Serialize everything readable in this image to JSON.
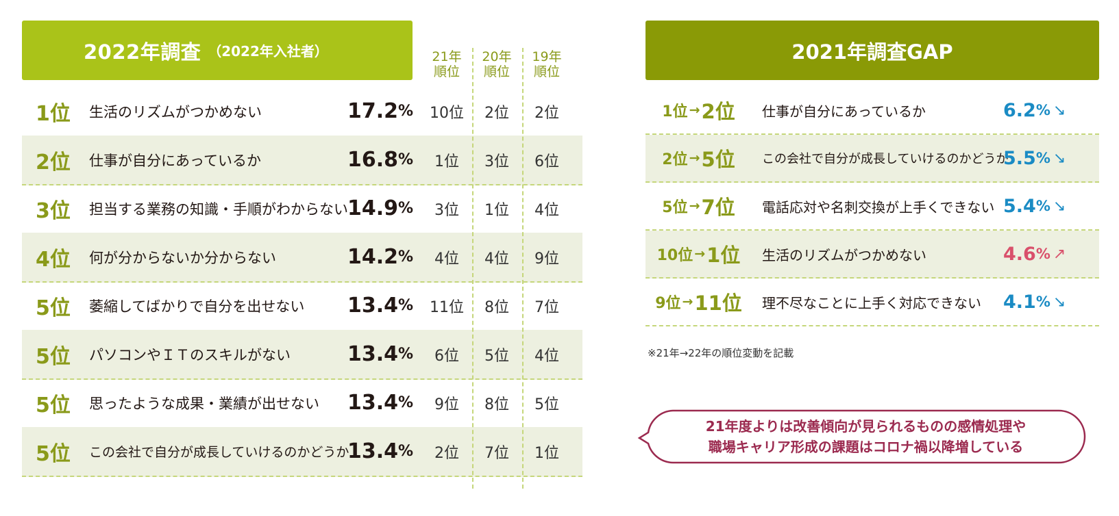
{
  "survey_2022": {
    "title": "2022年調査",
    "subtitle": "（2022年入社者）",
    "column_headers": [
      {
        "line1": "21年",
        "line2": "順位"
      },
      {
        "line1": "20年",
        "line2": "順位"
      },
      {
        "line1": "19年",
        "line2": "順位"
      }
    ],
    "rows": [
      {
        "rank": "1位",
        "text": "生活のリズムがつかめない",
        "pct": "17.2",
        "unit": "%",
        "y21": "10位",
        "y20": "2位",
        "y19": "2位"
      },
      {
        "rank": "2位",
        "text": "仕事が自分にあっているか",
        "pct": "16.8",
        "unit": "%",
        "y21": "1位",
        "y20": "3位",
        "y19": "6位"
      },
      {
        "rank": "3位",
        "text": "担当する業務の知識・手順がわからない",
        "pct": "14.9",
        "unit": "%",
        "y21": "3位",
        "y20": "1位",
        "y19": "4位"
      },
      {
        "rank": "4位",
        "text": "何が分からないか分からない",
        "pct": "14.2",
        "unit": "%",
        "y21": "4位",
        "y20": "4位",
        "y19": "9位"
      },
      {
        "rank": "5位",
        "text": "萎縮してばかりで自分を出せない",
        "pct": "13.4",
        "unit": "%",
        "y21": "11位",
        "y20": "8位",
        "y19": "7位"
      },
      {
        "rank": "5位",
        "text": "パソコンやＩＴのスキルがない",
        "pct": "13.4",
        "unit": "%",
        "y21": "6位",
        "y20": "5位",
        "y19": "4位"
      },
      {
        "rank": "5位",
        "text": "思ったような成果・業績が出せない",
        "pct": "13.4",
        "unit": "%",
        "y21": "9位",
        "y20": "8位",
        "y19": "5位"
      },
      {
        "rank": "5位",
        "text": "この会社で自分が成長していけるのかどうか",
        "pct": "13.4",
        "unit": "%",
        "y21": "2位",
        "y20": "7位",
        "y19": "1位"
      }
    ]
  },
  "gap_2021": {
    "title": "2021年調査GAP",
    "arrow": "→",
    "rows": [
      {
        "from": "1位",
        "to": "2位",
        "text": "仕事が自分にあっているか",
        "pct": "6.2",
        "unit": "%",
        "trend": "↘",
        "trend_color": "#1a8bc4"
      },
      {
        "from": "2位",
        "to": "5位",
        "text": "この会社で自分が成長していけるのかどうか",
        "pct": "5.5",
        "unit": "%",
        "trend": "↘",
        "trend_color": "#1a8bc4"
      },
      {
        "from": "5位",
        "to": "7位",
        "text": "電話応対や名刺交換が上手くできない",
        "pct": "5.4",
        "unit": "%",
        "trend": "↘",
        "trend_color": "#1a8bc4"
      },
      {
        "from": "10位",
        "to": "1位",
        "text": "生活のリズムがつかめない",
        "pct": "4.6",
        "unit": "%",
        "trend": "↗",
        "trend_color": "#d9506b"
      },
      {
        "from": "9位",
        "to": "11位",
        "text": "理不尽なことに上手く対応できない",
        "pct": "4.1",
        "unit": "%",
        "trend": "↘",
        "trend_color": "#1a8bc4"
      }
    ],
    "note": "※21年→22年の順位変動を記載"
  },
  "callout": {
    "line1": "21年度よりは改善傾向が見られるものの感情処理や",
    "line2": "職場キャリア形成の課題はコロナ禍以降増している"
  },
  "colors": {
    "header_left": "#aac319",
    "header_right": "#8a9a06",
    "rank_text": "#8a9a1a",
    "row_shade": "#edf0e0",
    "callout": "#9b2a4f"
  }
}
